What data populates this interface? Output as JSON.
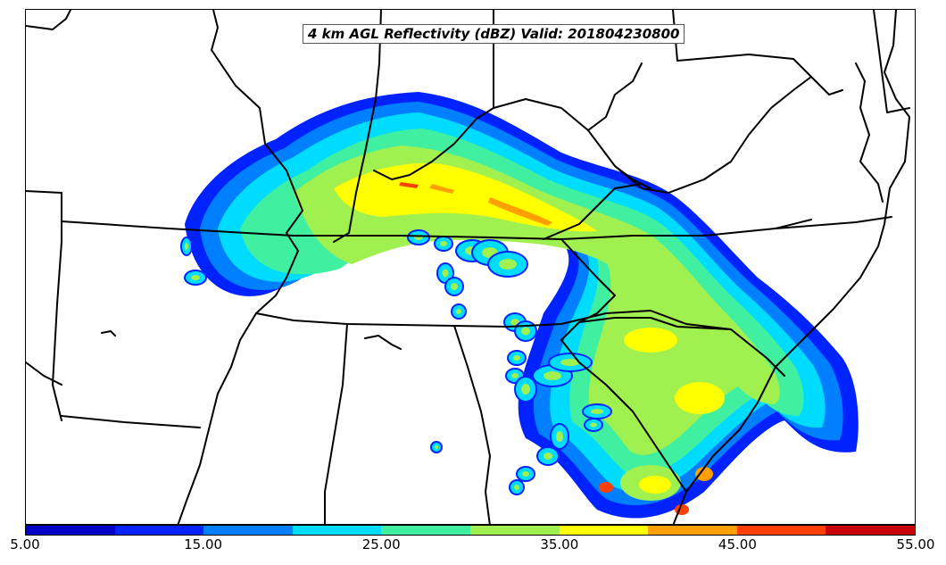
{
  "title": "4 km AGL Reflectivity (dBZ) Valid: 201804230800",
  "colorbar": {
    "tick_labels": [
      "5.00",
      "15.00",
      "25.00",
      "35.00",
      "45.00",
      "55.00"
    ],
    "colors": [
      "#0000c8",
      "#0022ff",
      "#0080ff",
      "#00dcff",
      "#40f0a0",
      "#a0f050",
      "#ffff00",
      "#ffa000",
      "#ff4000",
      "#c80000"
    ]
  },
  "palette": {
    "light_blue": "#0080ff",
    "dark_blue": "#0022ff",
    "cyan": "#00dcff",
    "green": "#40f0a0",
    "lime": "#a0f050",
    "yellow": "#ffff00",
    "orange": "#ffa000",
    "red": "#ff4000"
  }
}
